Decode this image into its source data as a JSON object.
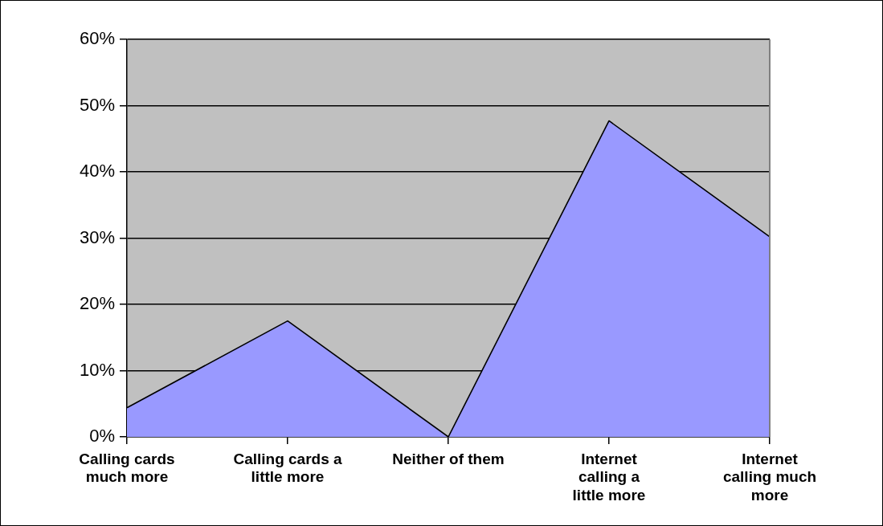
{
  "chart_data": {
    "type": "area",
    "categories": [
      "Calling cards much more",
      "Calling cards a little more",
      "Neither of them",
      "Internet calling a little more",
      "Internet calling much more"
    ],
    "series": [
      {
        "color": "#9999ff",
        "values": [
          4.4,
          17.5,
          0,
          47.7,
          30.2
        ]
      }
    ],
    "ylim": [
      0,
      60
    ],
    "yticks": [
      {
        "value": 0,
        "label": "0%"
      },
      {
        "value": 10,
        "label": "10%"
      },
      {
        "value": 20,
        "label": "20%"
      },
      {
        "value": 30,
        "label": "30%"
      },
      {
        "value": 40,
        "label": "40%"
      },
      {
        "value": 50,
        "label": "50%"
      },
      {
        "value": 60,
        "label": "60%"
      }
    ],
    "grid": "y",
    "legend": false,
    "marker": "none",
    "line_style": "solid"
  }
}
